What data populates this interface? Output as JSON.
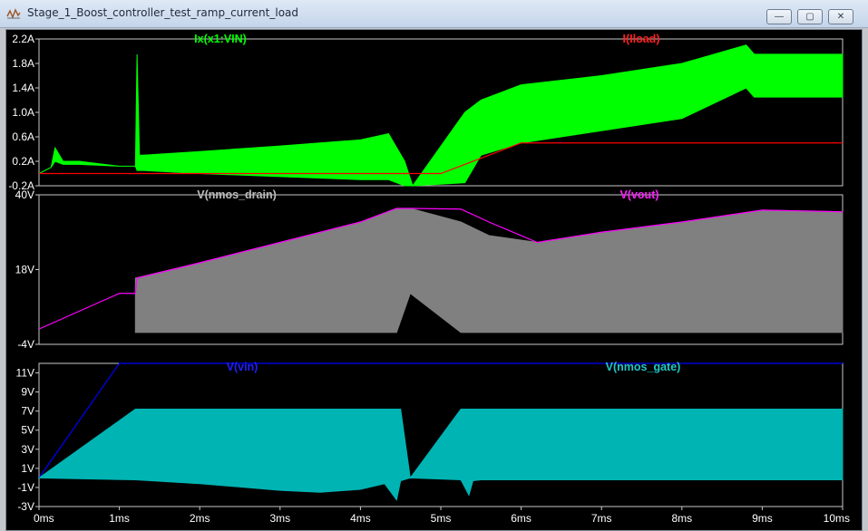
{
  "window": {
    "title": "Stage_1_Boost_controller_test_ramp_current_load",
    "minimize_label": "—",
    "maximize_label": "▢",
    "close_label": "✕"
  },
  "chart_data": [
    {
      "type": "line",
      "title": "",
      "xlabel": "",
      "ylabel": "",
      "ylim": [
        -0.2,
        2.2
      ],
      "y_ticks": [
        "2.2A",
        "1.8A",
        "1.4A",
        "1.0A",
        "0.6A",
        "0.2A",
        "-0.2A"
      ],
      "grid": false,
      "series": [
        {
          "name": "Ix(x1:VIN)",
          "color": "#00ff00",
          "x": [
            0,
            0.15,
            0.2,
            0.3,
            0.5,
            1.0,
            1.2,
            1.22,
            1.25,
            1.3,
            2,
            3,
            4,
            4.35,
            4.55,
            4.65,
            5.3,
            5.5,
            6.0,
            7.0,
            8.0,
            8.8,
            8.9,
            10.0
          ],
          "y_high": [
            0.0,
            0.1,
            0.42,
            0.2,
            0.2,
            0.12,
            0.12,
            1.95,
            0.3,
            0.3,
            0.36,
            0.45,
            0.55,
            0.65,
            0.2,
            -0.2,
            1.0,
            1.2,
            1.45,
            1.6,
            1.8,
            2.1,
            1.95,
            1.95
          ],
          "y_low": [
            0.0,
            0.1,
            0.2,
            0.15,
            0.15,
            0.12,
            0.12,
            0.05,
            0.05,
            0.05,
            0.0,
            -0.05,
            -0.1,
            -0.1,
            -0.2,
            -0.2,
            -0.15,
            0.3,
            0.5,
            0.7,
            0.9,
            1.4,
            1.25,
            1.25
          ]
        },
        {
          "name": "I(Iload)",
          "color": "#ff0000",
          "x": [
            0,
            5.0,
            6.0,
            10.0
          ],
          "y": [
            0.0,
            0.0,
            0.5,
            0.5
          ]
        }
      ]
    },
    {
      "type": "line",
      "title": "",
      "ylim": [
        -4,
        40
      ],
      "y_ticks": [
        "40V",
        "18V",
        "-4V"
      ],
      "grid": false,
      "series": [
        {
          "name": "V(nmos_drain)",
          "color": "#808080",
          "x": [
            1.2,
            2,
            3,
            4,
            4.45,
            4.62,
            5.25,
            5.6,
            6.2,
            7,
            8,
            9,
            10
          ],
          "y_high": [
            15.5,
            20,
            26,
            32,
            36,
            36,
            32,
            28,
            26,
            29,
            32,
            35.5,
            35
          ],
          "y_low": [
            -0.5,
            -0.5,
            -0.5,
            -0.5,
            -0.5,
            11,
            -0.5,
            -0.5,
            -0.5,
            -0.5,
            -0.5,
            -0.5,
            -0.5
          ]
        },
        {
          "name": "V(vout)",
          "color": "#ff00ff",
          "x": [
            0,
            1.0,
            1.2,
            1.22,
            2,
            3,
            4,
            4.45,
            4.62,
            5.25,
            5.6,
            6.2,
            7,
            8,
            9,
            10
          ],
          "y": [
            0.5,
            11,
            11,
            15.5,
            20,
            26,
            32,
            36,
            36,
            35.8,
            32,
            26,
            29,
            32,
            35.5,
            35
          ]
        }
      ]
    },
    {
      "type": "line",
      "title": "",
      "ylim": [
        -3,
        12
      ],
      "y_ticks": [
        "11V",
        "9V",
        "7V",
        "5V",
        "3V",
        "1V",
        "-1V",
        "-3V"
      ],
      "x_ticks": [
        "0ms",
        "1ms",
        "2ms",
        "3ms",
        "4ms",
        "5ms",
        "6ms",
        "7ms",
        "8ms",
        "9ms",
        "10ms"
      ],
      "xlim": [
        0,
        10
      ],
      "grid": false,
      "series": [
        {
          "name": "V(vin)",
          "color": "#0000ff",
          "x": [
            0,
            1.0,
            10
          ],
          "y": [
            0,
            12,
            12
          ]
        },
        {
          "name": "V(nmos_gate)",
          "color": "#00b4b4",
          "x": [
            0,
            1.2,
            2,
            3,
            3.5,
            4,
            4.3,
            4.45,
            4.5,
            4.62,
            5.25,
            5.35,
            5.4,
            5.5,
            10
          ],
          "y_high": [
            0,
            7.2,
            7.2,
            7.2,
            7.2,
            7.2,
            7.2,
            7.2,
            7.2,
            0,
            7.2,
            7.2,
            7.2,
            7.2,
            7.2
          ],
          "y_low": [
            0,
            -0.2,
            -0.6,
            -1.3,
            -1.5,
            -1.2,
            -0.6,
            -2.3,
            -0.3,
            0,
            -0.2,
            -1.8,
            -0.3,
            -0.2,
            -0.2
          ]
        }
      ]
    }
  ]
}
